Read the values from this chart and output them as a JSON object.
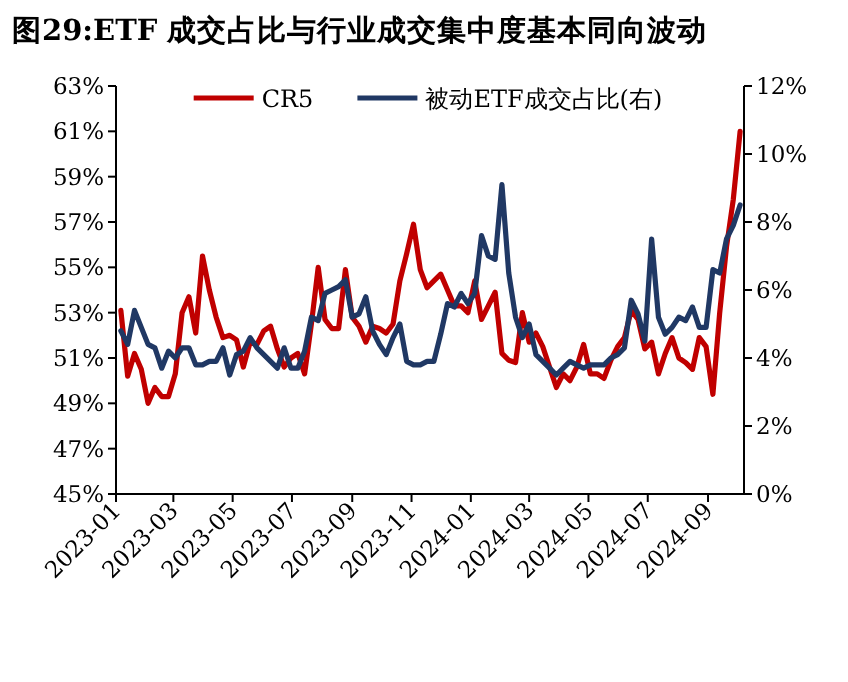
{
  "chart_data": {
    "type": "line",
    "title": "图29:ETF 成交占比与行业成交集中度基本同向波动",
    "x": [
      "2023-01-06",
      "2023-01-13",
      "2023-01-20",
      "2023-01-27",
      "2023-02-03",
      "2023-02-10",
      "2023-02-17",
      "2023-02-24",
      "2023-03-03",
      "2023-03-10",
      "2023-03-17",
      "2023-03-24",
      "2023-03-31",
      "2023-04-07",
      "2023-04-14",
      "2023-04-21",
      "2023-04-28",
      "2023-05-05",
      "2023-05-12",
      "2023-05-19",
      "2023-05-26",
      "2023-06-02",
      "2023-06-09",
      "2023-06-16",
      "2023-06-23",
      "2023-06-30",
      "2023-07-07",
      "2023-07-14",
      "2023-07-21",
      "2023-07-28",
      "2023-08-04",
      "2023-08-11",
      "2023-08-18",
      "2023-08-25",
      "2023-09-01",
      "2023-09-08",
      "2023-09-15",
      "2023-09-22",
      "2023-09-29",
      "2023-10-06",
      "2023-10-13",
      "2023-10-20",
      "2023-10-27",
      "2023-11-03",
      "2023-11-10",
      "2023-11-17",
      "2023-11-24",
      "2023-12-01",
      "2023-12-08",
      "2023-12-15",
      "2023-12-22",
      "2023-12-29",
      "2024-01-05",
      "2024-01-12",
      "2024-01-19",
      "2024-01-26",
      "2024-02-02",
      "2024-02-09",
      "2024-02-16",
      "2024-02-23",
      "2024-03-01",
      "2024-03-08",
      "2024-03-15",
      "2024-03-22",
      "2024-03-29",
      "2024-04-05",
      "2024-04-12",
      "2024-04-19",
      "2024-04-26",
      "2024-05-03",
      "2024-05-10",
      "2024-05-17",
      "2024-05-24",
      "2024-05-31",
      "2024-06-07",
      "2024-06-14",
      "2024-06-21",
      "2024-06-28",
      "2024-07-05",
      "2024-07-12",
      "2024-07-19",
      "2024-07-26",
      "2024-08-02",
      "2024-08-09",
      "2024-08-16",
      "2024-08-23",
      "2024-08-30",
      "2024-09-06",
      "2024-09-13",
      "2024-09-20",
      "2024-09-27",
      "2024-10-04"
    ],
    "series": [
      {
        "name": "CR5",
        "color": "#c00000",
        "values": [
          53.1,
          50.2,
          51.2,
          50.5,
          49.0,
          49.7,
          49.3,
          49.3,
          50.3,
          53.0,
          53.7,
          52.1,
          55.5,
          54.0,
          52.8,
          51.9,
          52.0,
          51.8,
          50.6,
          51.7,
          51.6,
          52.2,
          52.4,
          51.4,
          50.6,
          51.0,
          51.2,
          50.3,
          52.5,
          55.0,
          52.7,
          52.3,
          52.3,
          54.9,
          52.8,
          52.4,
          51.7,
          52.4,
          52.3,
          52.1,
          52.5,
          54.4,
          55.6,
          56.9,
          54.9,
          54.1,
          54.4,
          54.7,
          54.0,
          53.3,
          53.3,
          53.0,
          54.4,
          52.7,
          53.3,
          53.9,
          51.2,
          50.9,
          50.8,
          53.0,
          51.7,
          52.1,
          51.5,
          50.6,
          49.7,
          50.3,
          50.0,
          50.6,
          51.6,
          50.3,
          50.3,
          50.1,
          50.9,
          51.5,
          51.9,
          53.1,
          52.7,
          51.4,
          51.7,
          50.3,
          51.2,
          51.9,
          51.0,
          50.8,
          50.5,
          51.9,
          51.5,
          49.4,
          53.0,
          55.9,
          58.0,
          61.0
        ]
      },
      {
        "name": "被动ETF成交占比(右)",
        "color": "#203864",
        "axis": "y2",
        "values": [
          4.8,
          4.4,
          5.4,
          4.9,
          4.4,
          4.3,
          3.7,
          4.2,
          4.0,
          4.3,
          4.3,
          3.8,
          3.8,
          3.9,
          3.9,
          4.3,
          3.5,
          4.1,
          4.2,
          4.6,
          4.3,
          4.1,
          3.9,
          3.7,
          4.3,
          3.7,
          3.7,
          4.2,
          5.2,
          5.1,
          5.9,
          6.0,
          6.1,
          6.3,
          5.2,
          5.3,
          5.8,
          4.8,
          4.4,
          4.1,
          4.6,
          5.0,
          3.9,
          3.8,
          3.8,
          3.9,
          3.9,
          4.7,
          5.6,
          5.5,
          5.9,
          5.6,
          5.9,
          7.6,
          7.0,
          6.9,
          9.1,
          6.5,
          5.2,
          4.6,
          5.0,
          4.1,
          3.9,
          3.7,
          3.5,
          3.7,
          3.9,
          3.8,
          3.7,
          3.8,
          3.8,
          3.8,
          4.0,
          4.1,
          4.3,
          5.7,
          5.3,
          4.5,
          7.5,
          5.2,
          4.7,
          4.9,
          5.2,
          5.1,
          5.5,
          4.9,
          4.9,
          6.6,
          6.5,
          7.5,
          7.9,
          8.5
        ]
      }
    ],
    "xlim": [
      "2023-01-01",
      "2024-10-08"
    ],
    "xticks": [
      {
        "value": "2023-01-01",
        "label": "2023-01"
      },
      {
        "value": "2023-03-01",
        "label": "2023-03"
      },
      {
        "value": "2023-05-01",
        "label": "2023-05"
      },
      {
        "value": "2023-07-01",
        "label": "2023-07"
      },
      {
        "value": "2023-09-01",
        "label": "2023-09"
      },
      {
        "value": "2023-11-01",
        "label": "2023-11"
      },
      {
        "value": "2024-01-01",
        "label": "2024-01"
      },
      {
        "value": "2024-03-01",
        "label": "2024-03"
      },
      {
        "value": "2024-05-01",
        "label": "2024-05"
      },
      {
        "value": "2024-07-01",
        "label": "2024-07"
      },
      {
        "value": "2024-09-01",
        "label": "2024-09"
      }
    ],
    "ylim": [
      45,
      63
    ],
    "yticks": [
      {
        "value": 45,
        "label": "45%"
      },
      {
        "value": 47,
        "label": "47%"
      },
      {
        "value": 49,
        "label": "49%"
      },
      {
        "value": 51,
        "label": "51%"
      },
      {
        "value": 53,
        "label": "53%"
      },
      {
        "value": 55,
        "label": "55%"
      },
      {
        "value": 57,
        "label": "57%"
      },
      {
        "value": 59,
        "label": "59%"
      },
      {
        "value": 61,
        "label": "61%"
      },
      {
        "value": 63,
        "label": "63%"
      }
    ],
    "y2lim": [
      0,
      12
    ],
    "y2ticks": [
      {
        "value": 0,
        "label": "0%"
      },
      {
        "value": 2,
        "label": "2%"
      },
      {
        "value": 4,
        "label": "4%"
      },
      {
        "value": 6,
        "label": "6%"
      },
      {
        "value": 8,
        "label": "8%"
      },
      {
        "value": 10,
        "label": "10%"
      },
      {
        "value": 12,
        "label": "12%"
      }
    ],
    "legend": "top",
    "grid": false,
    "marker": "none",
    "line_style": "solid"
  }
}
